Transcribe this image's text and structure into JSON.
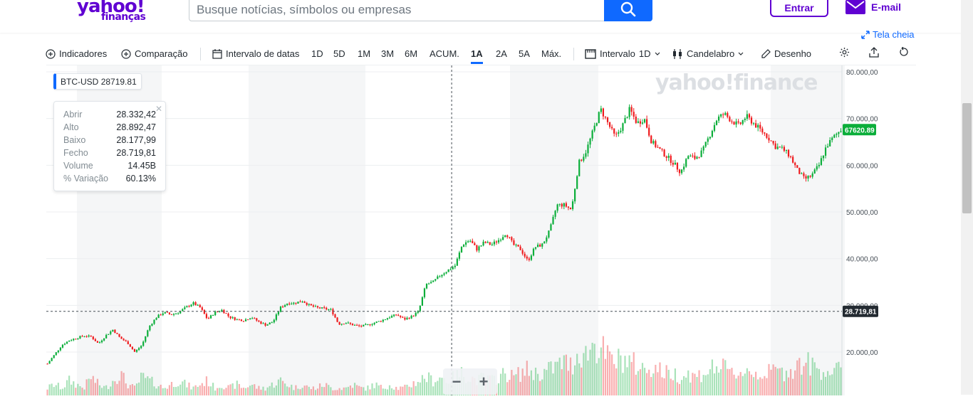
{
  "header": {
    "logo_main": "yahoo!",
    "logo_sub": "finanças",
    "search_placeholder": "Busque notícias, símbolos ou empresas",
    "login_label": "Entrar",
    "mail_label": "E-mail",
    "fullscreen_label": "Tela cheia"
  },
  "toolbar": {
    "indicators": "Indicadores",
    "comparison": "Comparação",
    "date_range": "Intervalo de datas",
    "ranges": [
      "1D",
      "5D",
      "1M",
      "3M",
      "6M",
      "ACUM.",
      "1A",
      "2A",
      "5A",
      "Máx."
    ],
    "active_range": "1A",
    "interval_label": "Intervalo",
    "interval_value": "1D",
    "chart_type": "Candelabro",
    "drawing": "Desenho"
  },
  "ticker": {
    "symbol": "BTC-USD",
    "price": "28719.81"
  },
  "tooltip": {
    "rows": [
      {
        "label": "Abrir",
        "value": "28.332,42"
      },
      {
        "label": "Alto",
        "value": "28.892,47"
      },
      {
        "label": "Baixo",
        "value": "28.177,99"
      },
      {
        "label": "Fecho",
        "value": "28.719,81"
      },
      {
        "label": "Volume",
        "value": "14.45B"
      },
      {
        "label": "% Variação",
        "value": "60.13%"
      }
    ]
  },
  "watermark": "yahoo!finance",
  "colors": {
    "up": "#0bae3a",
    "down": "#ef1b1e",
    "accent": "#0f69ff",
    "brand": "#6001d2",
    "current_price_tag": "#0bae3a",
    "crosshair_tag": "#232a31"
  },
  "chart_data": {
    "type": "candlestick",
    "title": "",
    "xlabel": "",
    "ylabel": "",
    "ylim": [
      14000,
      81000
    ],
    "y_ticks": [
      "20.000,00",
      "30.000,00",
      "40.000,00",
      "50.000,00",
      "60.000,00",
      "70.000,00",
      "80.000,00"
    ],
    "current_price_label": "67620.89",
    "crosshair_price_label": "28.719,81",
    "crosshair_position_fraction": 0.505,
    "close_series": [
      17500,
      19500,
      21500,
      22500,
      23000,
      23500,
      23300,
      21800,
      23500,
      24800,
      23000,
      22000,
      20000,
      21500,
      25500,
      27500,
      28500,
      28000,
      28500,
      29500,
      30500,
      29500,
      27000,
      28500,
      29000,
      27500,
      27000,
      26800,
      27500,
      26500,
      25800,
      26500,
      29500,
      30500,
      30500,
      31000,
      30000,
      29500,
      29300,
      29000,
      26000,
      26300,
      25800,
      25500,
      25800,
      26300,
      26800,
      27500,
      28000,
      27000,
      27600,
      28700,
      34500,
      35000,
      36500,
      37500,
      38500,
      43000,
      44000,
      42000,
      43500,
      43000,
      44000,
      45500,
      43000,
      42000,
      39500,
      42500,
      43000,
      46000,
      51500,
      51500,
      50500,
      60500,
      63000,
      67500,
      72000,
      69000,
      66000,
      68500,
      72000,
      69000,
      70000,
      65000,
      63500,
      62000,
      60500,
      58500,
      62000,
      61500,
      63000,
      66500,
      70000,
      71000,
      69500,
      68500,
      70500,
      69000,
      67500,
      66000,
      64000,
      63500,
      62000,
      59000,
      57000,
      57800,
      60000,
      64000,
      66000,
      67620
    ],
    "volume_series": [
      2,
      3,
      2,
      4,
      3,
      2,
      5,
      3,
      2,
      4,
      6,
      3,
      2,
      5,
      4,
      3,
      2,
      3,
      4,
      3,
      2,
      3,
      4,
      2,
      3,
      2,
      3,
      2,
      3,
      2,
      2,
      3,
      4,
      3,
      2,
      3,
      2,
      2,
      3,
      2,
      2,
      2,
      3,
      2,
      2,
      3,
      2,
      3,
      2,
      2,
      3,
      4,
      5,
      4,
      5,
      4,
      5,
      6,
      5,
      4,
      5,
      4,
      5,
      6,
      5,
      6,
      7,
      6,
      6,
      7,
      8,
      9,
      8,
      12,
      11,
      14,
      13,
      10,
      9,
      10,
      9,
      8,
      7,
      8,
      7,
      6,
      6,
      5,
      6,
      5,
      6,
      7,
      8,
      7,
      6,
      6,
      7,
      6,
      6,
      6,
      7,
      6,
      7,
      8,
      9,
      8,
      7,
      7,
      6,
      7
    ]
  }
}
